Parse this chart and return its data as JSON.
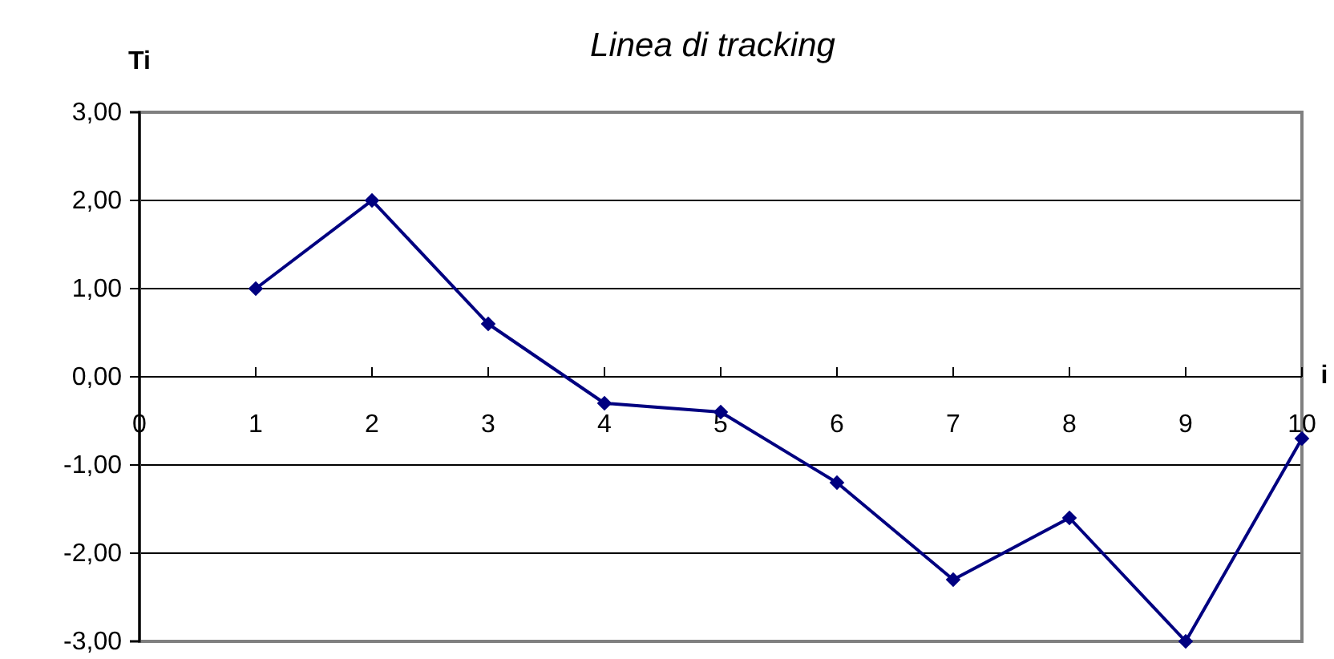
{
  "chart_data": {
    "type": "line",
    "title": "Linea di tracking",
    "xlabel": "i",
    "ylabel": "Ti",
    "x": [
      1,
      2,
      3,
      4,
      5,
      6,
      7,
      8,
      9,
      10
    ],
    "series": [
      {
        "color": "#000080",
        "values": [
          1.0,
          2.0,
          0.6,
          -0.3,
          -0.4,
          -1.2,
          -2.3,
          -1.6,
          -3.0,
          -0.7
        ]
      }
    ],
    "xlim": [
      0,
      10
    ],
    "xticks": [
      0,
      1,
      2,
      3,
      4,
      5,
      6,
      7,
      8,
      9,
      10
    ],
    "ylim": [
      -3,
      3
    ],
    "yticks": [
      {
        "value": -3,
        "label": "-3,00"
      },
      {
        "value": -2,
        "label": "-2,00"
      },
      {
        "value": -1,
        "label": "-1,00"
      },
      {
        "value": 0,
        "label": "0,00"
      },
      {
        "value": 1,
        "label": "1,00"
      },
      {
        "value": 2,
        "label": "2,00"
      },
      {
        "value": 3,
        "label": "3,00"
      }
    ],
    "grid": "y",
    "marker": "diamond",
    "line_style": "solid"
  }
}
